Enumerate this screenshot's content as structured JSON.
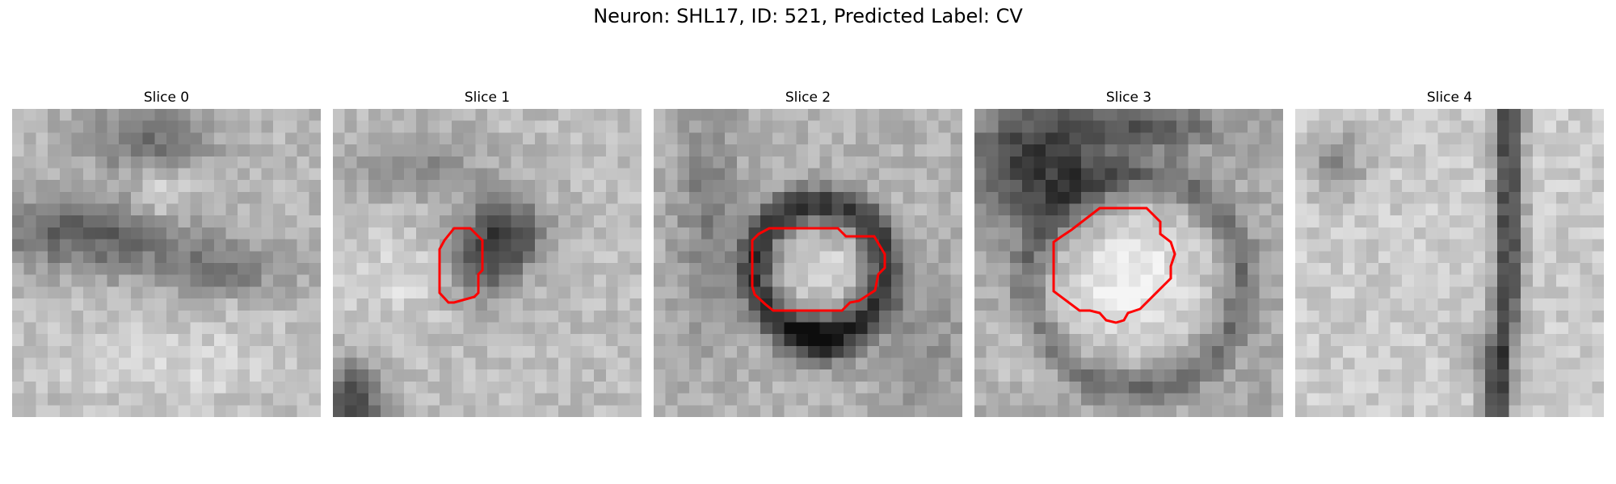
{
  "figure": {
    "title": "Neuron: SHL17, ID: 521, Predicted Label: CV",
    "outline_color": "#ff0000"
  },
  "panels": [
    {
      "label": "Slice 0",
      "has_outline": false
    },
    {
      "label": "Slice 1",
      "has_outline": true
    },
    {
      "label": "Slice 2",
      "has_outline": true
    },
    {
      "label": "Slice 3",
      "has_outline": true
    },
    {
      "label": "Slice 4",
      "has_outline": false
    }
  ]
}
